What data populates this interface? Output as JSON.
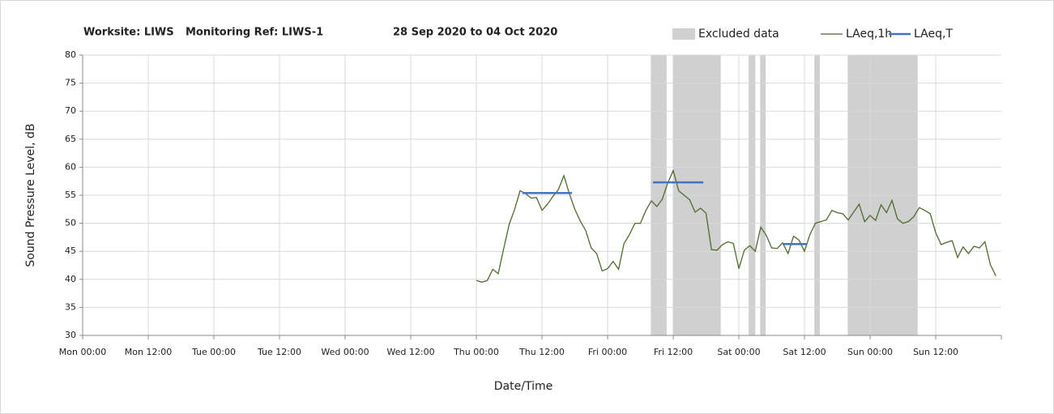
{
  "chart_data": {
    "type": "line",
    "title": [
      "Worksite: LIWS",
      "Monitoring Ref: LIWS-1",
      "28 Sep 2020 to 04 Oct 2020"
    ],
    "xlabel": "Date/Time",
    "ylabel": "Sound Pressure Level, dB",
    "xlim": [
      0,
      168
    ],
    "xticks": [
      {
        "value": 0,
        "label": "Mon 00:00"
      },
      {
        "value": 12,
        "label": "Mon 12:00"
      },
      {
        "value": 24,
        "label": "Tue 00:00"
      },
      {
        "value": 36,
        "label": "Tue 12:00"
      },
      {
        "value": 48,
        "label": "Wed 00:00"
      },
      {
        "value": 60,
        "label": "Wed 12:00"
      },
      {
        "value": 72,
        "label": "Thu 00:00"
      },
      {
        "value": 84,
        "label": "Thu 12:00"
      },
      {
        "value": 96,
        "label": "Fri 00:00"
      },
      {
        "value": 108,
        "label": "Fri 12:00"
      },
      {
        "value": 120,
        "label": "Sat 00:00"
      },
      {
        "value": 132,
        "label": "Sat 12:00"
      },
      {
        "value": 144,
        "label": "Sun 00:00"
      },
      {
        "value": 156,
        "label": "Sun 12:00"
      }
    ],
    "ylim": [
      30,
      80
    ],
    "yticks": [
      30,
      35,
      40,
      45,
      50,
      55,
      60,
      65,
      70,
      75,
      80
    ],
    "grid": true,
    "excluded": {
      "name": "Excluded data",
      "color": "#d0d0d0",
      "ranges": [
        [
          103.9,
          106.8
        ],
        [
          107.9,
          116.7
        ],
        [
          121.8,
          123
        ],
        [
          123.9,
          124.9
        ],
        [
          133.8,
          134.8
        ],
        [
          139.9,
          152.7
        ]
      ]
    },
    "series": [
      {
        "name": "LAeq,1h",
        "color": "#4e6b2c",
        "x": [
          72,
          73,
          74,
          75,
          76,
          77,
          78,
          79,
          80,
          81,
          82,
          83,
          84,
          85,
          86,
          87,
          88,
          89,
          90,
          91,
          92,
          93,
          94,
          95,
          96,
          97,
          98,
          99,
          100,
          101,
          102,
          103,
          104,
          105,
          106,
          107,
          108,
          109,
          110,
          111,
          112,
          113,
          114,
          115,
          116,
          117,
          118,
          119,
          120,
          121,
          122,
          123,
          124,
          125,
          126,
          127,
          128,
          129,
          130,
          131,
          132,
          133,
          134,
          135,
          136,
          137,
          138,
          139,
          140,
          141,
          142,
          143,
          144,
          145,
          146,
          147,
          148,
          149,
          150,
          151,
          152,
          153,
          154,
          155,
          156,
          157,
          158,
          159,
          160,
          161,
          162,
          163,
          164,
          165,
          166,
          167
        ],
        "values": [
          39.8,
          39.5,
          39.8,
          41.8,
          41,
          45.5,
          49.8,
          52.5,
          55.8,
          55.3,
          54.5,
          54.6,
          52.3,
          53.4,
          54.8,
          56,
          58.5,
          55.3,
          52.5,
          50.4,
          48.7,
          45.6,
          44.6,
          41.5,
          41.9,
          43.2,
          41.8,
          46.4,
          48,
          50,
          50,
          52.3,
          54,
          53,
          54.3,
          57.2,
          59.4,
          55.8,
          55,
          54.2,
          52,
          52.7,
          51.8,
          45.3,
          45.2,
          46.2,
          46.7,
          46.4,
          41.9,
          45.2,
          46,
          45,
          49.3,
          47.9,
          45.6,
          45.5,
          46.5,
          44.6,
          47.7,
          47,
          45,
          48,
          50,
          50.3,
          50.6,
          52.3,
          51.9,
          51.7,
          50.6,
          52,
          53.4,
          50.3,
          51.4,
          50.5,
          53.3,
          51.9,
          54.1,
          50.8,
          50,
          50.3,
          51.2,
          52.8,
          52.3,
          51.7,
          48.3,
          46.2,
          46.6,
          46.9,
          43.9,
          45.8,
          44.6,
          45.9,
          45.6,
          46.7,
          42.6,
          40.6
        ]
      },
      {
        "name": "LAeq,T",
        "color": "#4472c4",
        "x": [
          [
            80.4,
            89.5
          ],
          [
            104.3,
            113.5
          ],
          [
            128.1,
            132.4
          ]
        ],
        "values": [
          55.4,
          57.3,
          46.3
        ]
      }
    ]
  }
}
